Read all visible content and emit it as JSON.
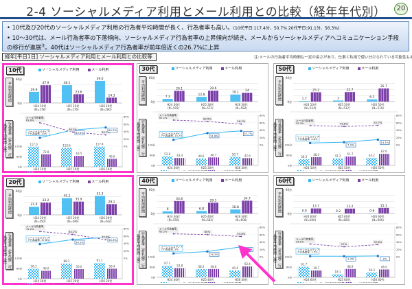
{
  "header": {
    "title": "2-4 ソーシャルメディア利用とメール利用との比較（経年年代別）",
    "page_number": "20"
  },
  "summary": {
    "bullet1": "10代及び20代のソーシャルメディア利用の行為者平均時間が長く、行為者率も高い。",
    "bullet1_note": "(10代平日:117.4分、50.7%  20代平日:91.1分、56.3%)",
    "bullet2_a": "10～30代は、メール行為者率の下落傾向、ソーシャルメディア行為者率の上昇傾向が続き、メールからソーシャルメディアへコミュニケーション手段の移行が進展",
    "bullet2_sup": "注",
    "bullet2_b": "。40代はソーシャルメディア行為者率が前年倍近くの26.7%に上昇"
  },
  "section_label": "経年[平日1日] ソーシャルメディア利用とメール利用との比較等（年代別）",
  "footnote": "注:メールの行為者平均時間も一定の長さがあり、仕事と私用で使い分けられている可能性もある。",
  "labels": {
    "legend_sm": "ソーシャルメディア利用",
    "legend_mail": "メール利用",
    "legend_sm_time": "ソーシャルメディア行為者平均時間",
    "legend_mail_time": "メール行為者平均時間",
    "top_ylabel": "平均利用時間",
    "bottom_ylabel": "行為者率（折れ線） 行為者平均時間（棒）",
    "top_yticks": [
      "60分",
      "0分"
    ],
    "bottom_yticks_left": [
      "120分",
      "60分",
      "0分"
    ],
    "bottom_yticks_right": [
      "80%",
      "60%",
      "40%",
      "20%",
      "0%"
    ],
    "mail_rate_prefix": "メール行為者率,",
    "sm_rate_prefix": "ソーシャルメディア行為者率,"
  },
  "colors": {
    "sm": "#33b5f0",
    "mail": "#7b3fa8",
    "highlight": "#ff33cc",
    "title_rule": "#1f4e8c"
  },
  "chart_data": [
    {
      "type": "bar+line",
      "title": "10代",
      "categories": [
        "H24 10代",
        "H25 10代",
        "H26 10代"
      ],
      "n": [
        "(N=278)",
        "(N=276)",
        "(N=280)"
      ],
      "avg_time": {
        "sm": [
          29.9,
          48.1,
          59.6
        ],
        "mail": [
          47.9,
          23.6,
          14.3
        ]
      },
      "rate": {
        "sm": [
          23.0,
          43.9,
          50.7
        ],
        "mail": [
          63.8,
          38.3,
          30.7
        ]
      },
      "doer_time": {
        "sm": [
          117.0,
          110.6,
          117.4
        ],
        "mail": [
          72.8,
          63.5,
          46.6
        ]
      },
      "highlighted": true
    },
    {
      "type": "bar+line",
      "title": "30代",
      "categories": [
        "H24 30代",
        "H25 30代",
        "H26 30代"
      ],
      "n": [
        "(N=592)",
        "(N=572)",
        "(N=582)"
      ],
      "avg_time": {
        "sm": [
          7.3,
          12.8,
          19.1
        ],
        "mail": [
          29.1,
          29.6,
          24.0
        ]
      },
      "rate": {
        "sm": [
          13.7,
          31.8,
          37.7
        ],
        "mail": [
          67.1,
          63.5,
          56.2
        ]
      },
      "doer_time": {
        "sm": [
          53.0,
          40.6,
          50.7
        ],
        "mail": [
          43.4,
          46.7,
          42.6
        ]
      }
    },
    {
      "type": "bar+line",
      "title": "50代",
      "categories": [
        "H24 50代",
        "H25 50代",
        "H26 50代"
      ],
      "n": [
        "(N=524)",
        "(N=512)",
        "(N=510)"
      ],
      "avg_time": {
        "sm": [
          1.7,
          3.0,
          6.2
        ],
        "mail": [
          25.2,
          25.7,
          35.7
        ]
      },
      "rate": {
        "sm": [
          4.8,
          7.2,
          14.1
        ],
        "mail": [
          52.3,
          49.8,
          52.7
        ]
      },
      "doer_time": {
        "sm": [
          36.3,
          41.2,
          44.2
        ],
        "mail": [
          48.3,
          51.7,
          67.6
        ]
      }
    },
    {
      "type": "bar+line",
      "title": "20代",
      "categories": [
        "H24 20代",
        "H25 20代",
        "H26 20代"
      ],
      "n": [
        "(N=450)",
        "(N=446)",
        "(N=442)"
      ],
      "avg_time": {
        "sm": [
          21.9,
          45.1,
          51.3
        ],
        "mail": [
          33.2,
          35.9,
          29.1
        ]
      },
      "rate": {
        "sm": [
          37.8,
          50.2,
          56.3
        ],
        "mail": [
          72.2,
          64.1,
          49.8
        ]
      },
      "doer_time": {
        "sm": [
          58.3,
          88.2,
          91.1
        ],
        "mail": [
          46.0,
          56.0,
          58.4
        ]
      },
      "highlighted": true
    },
    {
      "type": "bar+line",
      "title": "40代",
      "categories": [
        "H24 40代",
        "H25 40代",
        "H26 40代"
      ],
      "n": [
        "(N=556)",
        "(N=582)",
        "(N=606)"
      ],
      "avg_time": {
        "sm": [
          6.0,
          6.8,
          10.8
        ],
        "mail": [
          33.8,
          29.1,
          34.7
        ]
      },
      "rate": {
        "sm": [
          9.0,
          14.2,
          26.7
        ],
        "mail": [
          62.2,
          60.0,
          54.8
        ]
      },
      "doer_time": {
        "sm": [
          67.1,
          48.2,
          40.4
        ],
        "mail": [
          53.8,
          48.6,
          63.4
        ]
      },
      "arrow_target": "H26 SM rate 26.7%"
    },
    {
      "type": "bar+line",
      "title": "60代",
      "categories": [
        "H24 60代",
        "H25 60代",
        "H26 60代"
      ],
      "n": [
        "(N=600)",
        "(N=600)",
        "(N=600)"
      ],
      "avg_time": {
        "sm": [
          0.9,
          0.2,
          0.6
        ],
        "mail": [
          13.7,
          13.2,
          15.1
        ]
      },
      "rate": {
        "sm": [
          1.5,
          1.3,
          2.0
        ],
        "mail": [
          34.5,
          27.0,
          32.8
        ]
      },
      "doer_time": {
        "sm": [
          61.7,
          18.1,
          28.3
        ],
        "mail": [
          39.7,
          48.9,
          46.0
        ]
      }
    }
  ]
}
